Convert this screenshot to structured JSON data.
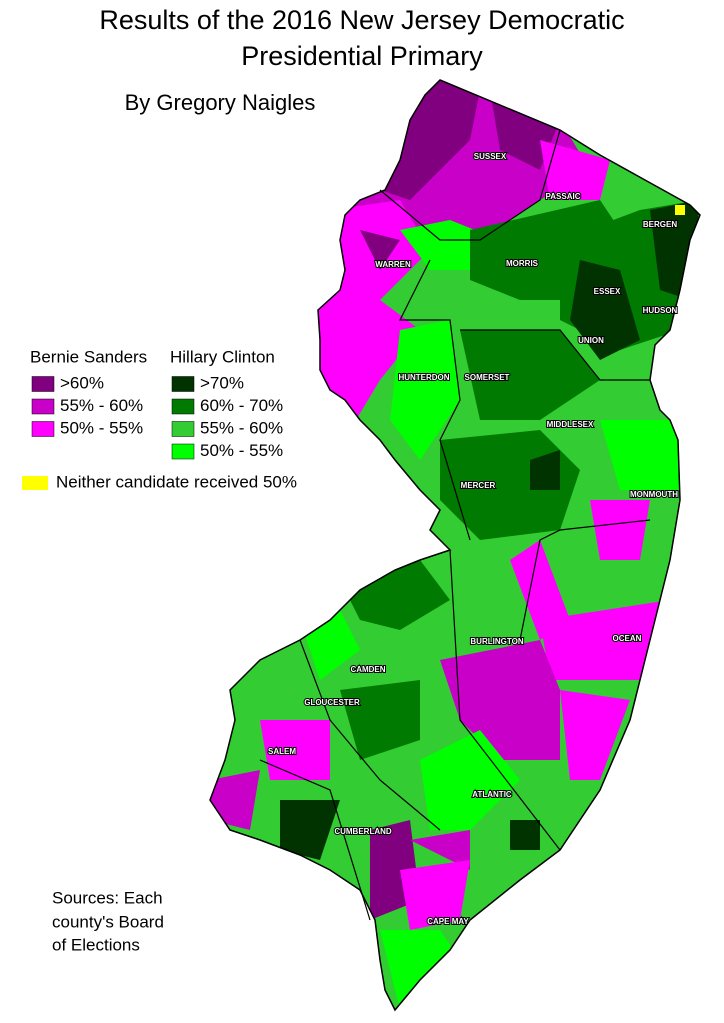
{
  "title": [
    "Results of the 2016 New Jersey Democratic",
    "Presidential Primary"
  ],
  "subtitle": "By Gregory Naigles",
  "legend": {
    "groups": [
      {
        "name": "Bernie Sanders",
        "items": [
          {
            "label": ">60%",
            "color": "#800080"
          },
          {
            "label": "55% - 60%",
            "color": "#c800c8"
          },
          {
            "label": "50% - 55%",
            "color": "#ff00ff"
          }
        ]
      },
      {
        "name": "Hillary Clinton",
        "items": [
          {
            "label": ">70%",
            "color": "#003300"
          },
          {
            "label": "60% - 70%",
            "color": "#007a00"
          },
          {
            "label": "55% - 60%",
            "color": "#33cc33"
          },
          {
            "label": "50% - 55%",
            "color": "#00ff00"
          }
        ]
      }
    ],
    "other": {
      "label": "Neither candidate received 50%",
      "color": "#ffff00"
    }
  },
  "counties": [
    "SUSSEX",
    "PASSAIC",
    "BERGEN",
    "WARREN",
    "MORRIS",
    "ESSEX",
    "HUDSON",
    "UNION",
    "HUNTERDON",
    "SOMERSET",
    "MIDDLESEX",
    "MERCER",
    "MONMOUTH",
    "BURLINGTON",
    "OCEAN",
    "CAMDEN",
    "GLOUCESTER",
    "SALEM",
    "ATLANTIC",
    "CUMBERLAND",
    "CAPE MAY"
  ],
  "sources": [
    "Sources: Each",
    "county's Board",
    "of Elections"
  ]
}
